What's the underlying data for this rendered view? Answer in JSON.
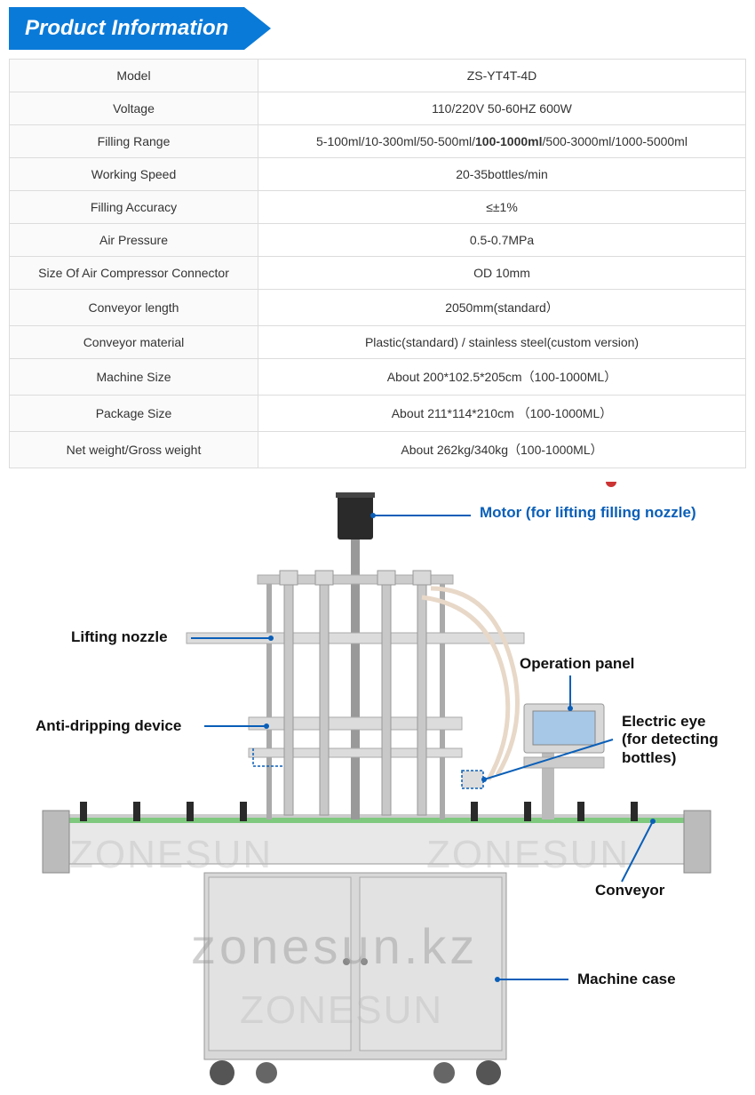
{
  "header": {
    "title": "Product Information",
    "bg_color": "#0a7ad8",
    "text_color": "#ffffff"
  },
  "spec_table": {
    "border_color": "#dcdcdc",
    "label_bg": "#fafafa",
    "value_bg": "#ffffff",
    "text_color": "#333333",
    "rows": [
      {
        "label": "Model",
        "value": "ZS-YT4T-4D"
      },
      {
        "label": "Voltage",
        "value": "110/220V 50-60HZ 600W"
      },
      {
        "label": "Filling Range",
        "value_pre": "5-100ml/10-300ml/50-500ml/",
        "value_bold": "100-1000ml",
        "value_post": "/500-3000ml/1000-5000ml"
      },
      {
        "label": "Working Speed",
        "value": "20-35bottles/min"
      },
      {
        "label": "Filling Accuracy",
        "value": "≤±1%"
      },
      {
        "label": "Air Pressure",
        "value": "0.5-0.7MPa"
      },
      {
        "label": "Size Of Air Compressor Connector",
        "value": "OD 10mm"
      },
      {
        "label": "Conveyor length",
        "value": "2050mm(standard）"
      },
      {
        "label": "Conveyor material",
        "value": "Plastic(standard) / stainless steel(custom version)"
      },
      {
        "label": "Machine Size",
        "value": "About 200*102.5*205cm（100-1000ML）"
      },
      {
        "label": "Package Size",
        "value": "About 211*114*210cm （100-1000ML）"
      },
      {
        "label": "Net weight/Gross weight",
        "value": "About 262kg/340kg（100-1000ML）"
      }
    ]
  },
  "diagram": {
    "callouts": {
      "motor": "Motor (for lifting filling nozzle)",
      "lifting_nozzle": "Lifting nozzle",
      "operation_panel": "Operation panel",
      "anti_dripping": "Anti-dripping device",
      "electric_eye": "Electric eye\n(for detecting\nbottles)",
      "conveyor": "Conveyor",
      "machine_case": "Machine case"
    },
    "callout_color": "#0a5fb8",
    "leader_color": "#0a5fb8",
    "watermarks": {
      "brand": "ZONESUN",
      "site": "zonesun.kz"
    },
    "machine_colors": {
      "steel": "#d8d8d8",
      "steel_dark": "#b8b8b8",
      "steel_light": "#eeeeee",
      "conveyor_belt": "#7fc97f",
      "panel_screen": "#a8c8e8",
      "tube": "#e8d8c8",
      "motor": "#2a2a2a"
    }
  }
}
